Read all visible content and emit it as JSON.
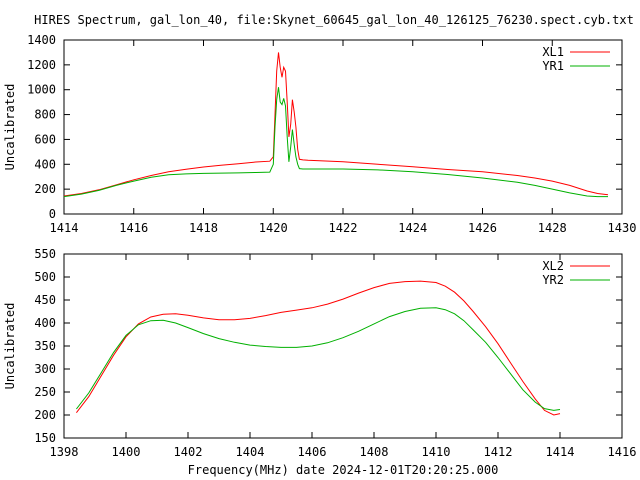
{
  "title": "HIRES Spectrum, gal_lon_40, file:Skynet_60645_gal_lon_40_126125_76230.spect.cyb.txt",
  "chart_data": [
    {
      "type": "line",
      "xlabel": "",
      "ylabel": "Uncalibrated",
      "xlim": [
        1414,
        1430
      ],
      "ylim": [
        0,
        1400
      ],
      "xticks": [
        "1414",
        "1416",
        "1418",
        "1420",
        "1422",
        "1424",
        "1426",
        "1428",
        "1430"
      ],
      "yticks": [
        "0",
        "200",
        "400",
        "600",
        "800",
        "1000",
        "1200",
        "1400"
      ],
      "legend": "top-right",
      "series": [
        {
          "name": "XL1",
          "color": "#ff0000",
          "points": [
            [
              1414.0,
              145
            ],
            [
              1414.5,
              165
            ],
            [
              1415.0,
              195
            ],
            [
              1415.5,
              235
            ],
            [
              1416.0,
              275
            ],
            [
              1416.5,
              310
            ],
            [
              1417.0,
              340
            ],
            [
              1417.5,
              360
            ],
            [
              1418.0,
              378
            ],
            [
              1418.5,
              392
            ],
            [
              1419.0,
              405
            ],
            [
              1419.5,
              418
            ],
            [
              1419.9,
              425
            ],
            [
              1420.0,
              460
            ],
            [
              1420.05,
              800
            ],
            [
              1420.1,
              1150
            ],
            [
              1420.15,
              1300
            ],
            [
              1420.2,
              1180
            ],
            [
              1420.25,
              1100
            ],
            [
              1420.3,
              1180
            ],
            [
              1420.35,
              1150
            ],
            [
              1420.4,
              900
            ],
            [
              1420.45,
              620
            ],
            [
              1420.5,
              720
            ],
            [
              1420.55,
              920
            ],
            [
              1420.6,
              820
            ],
            [
              1420.65,
              700
            ],
            [
              1420.7,
              520
            ],
            [
              1420.75,
              440
            ],
            [
              1420.85,
              435
            ],
            [
              1421.0,
              432
            ],
            [
              1422.0,
              420
            ],
            [
              1423.0,
              400
            ],
            [
              1424.0,
              380
            ],
            [
              1425.0,
              358
            ],
            [
              1426.0,
              340
            ],
            [
              1427.0,
              310
            ],
            [
              1427.5,
              290
            ],
            [
              1428.0,
              265
            ],
            [
              1428.5,
              230
            ],
            [
              1429.0,
              185
            ],
            [
              1429.3,
              165
            ],
            [
              1429.6,
              155
            ]
          ]
        },
        {
          "name": "YR1",
          "color": "#00b000",
          "points": [
            [
              1414.0,
              140
            ],
            [
              1414.5,
              160
            ],
            [
              1415.0,
              190
            ],
            [
              1415.5,
              230
            ],
            [
              1416.0,
              265
            ],
            [
              1416.5,
              295
            ],
            [
              1417.0,
              315
            ],
            [
              1417.5,
              323
            ],
            [
              1418.0,
              327
            ],
            [
              1418.5,
              329
            ],
            [
              1419.0,
              331
            ],
            [
              1419.5,
              334
            ],
            [
              1419.9,
              337
            ],
            [
              1420.0,
              400
            ],
            [
              1420.05,
              700
            ],
            [
              1420.1,
              920
            ],
            [
              1420.15,
              1020
            ],
            [
              1420.2,
              900
            ],
            [
              1420.25,
              880
            ],
            [
              1420.3,
              930
            ],
            [
              1420.35,
              870
            ],
            [
              1420.4,
              620
            ],
            [
              1420.45,
              420
            ],
            [
              1420.5,
              540
            ],
            [
              1420.55,
              680
            ],
            [
              1420.6,
              560
            ],
            [
              1420.65,
              460
            ],
            [
              1420.7,
              400
            ],
            [
              1420.75,
              365
            ],
            [
              1420.85,
              362
            ],
            [
              1421.0,
              362
            ],
            [
              1422.0,
              362
            ],
            [
              1423.0,
              355
            ],
            [
              1424.0,
              340
            ],
            [
              1425.0,
              318
            ],
            [
              1426.0,
              290
            ],
            [
              1427.0,
              255
            ],
            [
              1427.5,
              230
            ],
            [
              1428.0,
              200
            ],
            [
              1428.5,
              170
            ],
            [
              1429.0,
              145
            ],
            [
              1429.3,
              140
            ],
            [
              1429.6,
              140
            ]
          ]
        }
      ]
    },
    {
      "type": "line",
      "xlabel": "Frequency(MHz) date 2024-12-01T20:20:25.000",
      "ylabel": "Uncalibrated",
      "xlim": [
        1398,
        1416
      ],
      "ylim": [
        150,
        550
      ],
      "xticks": [
        "1398",
        "1400",
        "1402",
        "1404",
        "1406",
        "1408",
        "1410",
        "1412",
        "1414",
        "1416"
      ],
      "yticks": [
        "150",
        "200",
        "250",
        "300",
        "350",
        "400",
        "450",
        "500",
        "550"
      ],
      "legend": "top-right",
      "series": [
        {
          "name": "XL2",
          "color": "#ff0000",
          "points": [
            [
              1398.4,
              205
            ],
            [
              1398.8,
              240
            ],
            [
              1399.2,
              285
            ],
            [
              1399.6,
              330
            ],
            [
              1400.0,
              370
            ],
            [
              1400.4,
              398
            ],
            [
              1400.8,
              413
            ],
            [
              1401.2,
              419
            ],
            [
              1401.6,
              420
            ],
            [
              1402.0,
              417
            ],
            [
              1402.5,
              411
            ],
            [
              1403.0,
              407
            ],
            [
              1403.5,
              407
            ],
            [
              1404.0,
              410
            ],
            [
              1404.5,
              416
            ],
            [
              1405.0,
              423
            ],
            [
              1405.5,
              428
            ],
            [
              1406.0,
              433
            ],
            [
              1406.5,
              441
            ],
            [
              1407.0,
              452
            ],
            [
              1407.5,
              465
            ],
            [
              1408.0,
              477
            ],
            [
              1408.5,
              486
            ],
            [
              1409.0,
              490
            ],
            [
              1409.5,
              491
            ],
            [
              1410.0,
              488
            ],
            [
              1410.3,
              480
            ],
            [
              1410.6,
              467
            ],
            [
              1410.9,
              448
            ],
            [
              1411.2,
              425
            ],
            [
              1411.6,
              392
            ],
            [
              1412.0,
              355
            ],
            [
              1412.4,
              314
            ],
            [
              1412.8,
              273
            ],
            [
              1413.2,
              235
            ],
            [
              1413.5,
              210
            ],
            [
              1413.8,
              200
            ],
            [
              1414.0,
              203
            ]
          ]
        },
        {
          "name": "YR2",
          "color": "#00b000",
          "points": [
            [
              1398.4,
              213
            ],
            [
              1398.8,
              248
            ],
            [
              1399.2,
              292
            ],
            [
              1399.6,
              336
            ],
            [
              1400.0,
              373
            ],
            [
              1400.4,
              396
            ],
            [
              1400.8,
              405
            ],
            [
              1401.2,
              406
            ],
            [
              1401.6,
              400
            ],
            [
              1402.0,
              390
            ],
            [
              1402.5,
              377
            ],
            [
              1403.0,
              366
            ],
            [
              1403.5,
              358
            ],
            [
              1404.0,
              352
            ],
            [
              1404.5,
              349
            ],
            [
              1405.0,
              347
            ],
            [
              1405.5,
              347
            ],
            [
              1406.0,
              350
            ],
            [
              1406.5,
              357
            ],
            [
              1407.0,
              368
            ],
            [
              1407.5,
              382
            ],
            [
              1408.0,
              398
            ],
            [
              1408.5,
              414
            ],
            [
              1409.0,
              425
            ],
            [
              1409.5,
              432
            ],
            [
              1410.0,
              433
            ],
            [
              1410.3,
              429
            ],
            [
              1410.6,
              420
            ],
            [
              1410.9,
              405
            ],
            [
              1411.2,
              385
            ],
            [
              1411.6,
              358
            ],
            [
              1412.0,
              325
            ],
            [
              1412.4,
              290
            ],
            [
              1412.8,
              255
            ],
            [
              1413.2,
              228
            ],
            [
              1413.5,
              214
            ],
            [
              1413.8,
              210
            ],
            [
              1414.0,
              212
            ]
          ]
        }
      ]
    }
  ]
}
